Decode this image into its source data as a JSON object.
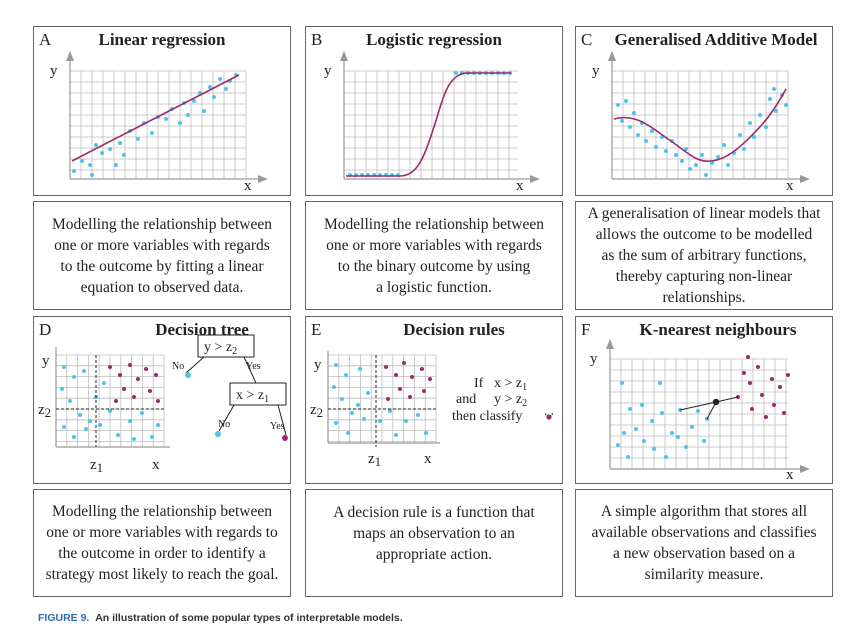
{
  "panels": [
    {
      "letter": "A",
      "title": "Linear regression",
      "x_axis": "x",
      "y_axis": "y",
      "description": [
        "Modelling the relationship between",
        "one or more variables with regards",
        "to the outcome by fitting a linear",
        "equation to observed data."
      ]
    },
    {
      "letter": "B",
      "title": "Logistic regression",
      "x_axis": "x",
      "y_axis": "y",
      "description": [
        "Modelling the relationship between",
        "one or more variables with regards",
        "to the binary outcome by using",
        "a logistic function."
      ]
    },
    {
      "letter": "C",
      "title": "Generalised Additive Model",
      "x_axis": "x",
      "y_axis": "y",
      "description": [
        "A generalisation of linear models that",
        "allows the outcome to be modelled",
        "as the sum of arbitrary functions,",
        "thereby capturing non-linear",
        "relationships."
      ]
    },
    {
      "letter": "D",
      "title": "Decision tree",
      "x_axis": "x",
      "y_axis": "y",
      "z1": "z",
      "z1_sub": "1",
      "z2": "z",
      "z2_sub": "2",
      "tree": {
        "root": "y > z",
        "root_sub": "2",
        "child": "x > z",
        "child_sub": "1",
        "no": "No",
        "yes": "Yes"
      },
      "description": [
        "Modelling the relationship between",
        "one or more variables with regards to",
        "the outcome in order to identify a",
        "strategy most likely to reach the goal."
      ]
    },
    {
      "letter": "E",
      "title": "Decision rules",
      "x_axis": "x",
      "y_axis": "y",
      "z1": "z",
      "z1_sub": "1",
      "z2": "z",
      "z2_sub": "2",
      "rule": {
        "if": "If",
        "cond1": "x > z",
        "cond1_sub": "1",
        "and": "and",
        "cond2": "y > z",
        "cond2_sub": "2",
        "then": "then classify"
      },
      "description": [
        "A decision rule is a function that",
        "maps an observation to an",
        "appropriate action."
      ]
    },
    {
      "letter": "F",
      "title": "K-nearest neighbours",
      "x_axis": "x",
      "y_axis": "y",
      "description": [
        "A simple algorithm that stores all",
        "available observations and classifies",
        "a new observation based on a",
        "similarity measure."
      ]
    }
  ],
  "caption": {
    "label": "FIGURE 9.",
    "text": "An illustration of some popular types of interpretable models."
  },
  "colors": {
    "cyan": "#4fc3e8",
    "magenta": "#9c2a6b",
    "grid": "#bdbdbd",
    "axis": "#999999",
    "border": "#666666"
  }
}
